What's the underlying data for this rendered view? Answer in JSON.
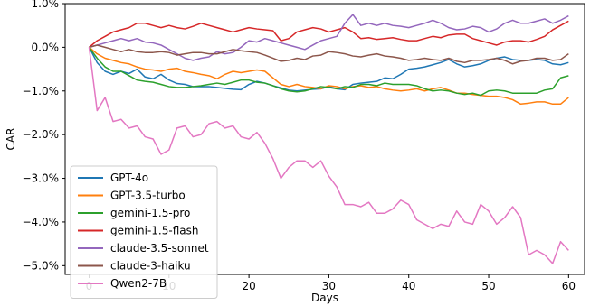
{
  "chart_data": {
    "type": "line",
    "xlabel": "Days",
    "ylabel": "CAR",
    "xlim": [
      -3,
      62
    ],
    "ylim": [
      -5.2,
      1.0
    ],
    "xticks": [
      0,
      10,
      20,
      30,
      40,
      50,
      60
    ],
    "xtick_labels": [
      "0",
      "10",
      "20",
      "30",
      "40",
      "50",
      "60"
    ],
    "yticks": [
      1.0,
      0.0,
      -1.0,
      -2.0,
      -3.0,
      -4.0,
      -5.0
    ],
    "ytick_labels": [
      "1.0%",
      "0.0%",
      "−1.0%",
      "−2.0%",
      "−3.0%",
      "−4.0%",
      "−5.0%"
    ],
    "grid": false,
    "legend_position": "lower-left",
    "x": [
      0,
      1,
      2,
      3,
      4,
      5,
      6,
      7,
      8,
      9,
      10,
      11,
      12,
      13,
      14,
      15,
      16,
      17,
      18,
      19,
      20,
      21,
      22,
      23,
      24,
      25,
      26,
      27,
      28,
      29,
      30,
      31,
      32,
      33,
      34,
      35,
      36,
      37,
      38,
      39,
      40,
      41,
      42,
      43,
      44,
      45,
      46,
      47,
      48,
      49,
      50,
      51,
      52,
      53,
      54,
      55,
      56,
      57,
      58,
      59,
      60
    ],
    "series": [
      {
        "name": "GPT-4o",
        "color": "#1f77b4",
        "values": [
          0.0,
          -0.35,
          -0.55,
          -0.62,
          -0.55,
          -0.6,
          -0.5,
          -0.68,
          -0.72,
          -0.62,
          -0.75,
          -0.83,
          -0.85,
          -0.9,
          -0.9,
          -0.9,
          -0.92,
          -0.94,
          -0.96,
          -0.97,
          -0.85,
          -0.78,
          -0.82,
          -0.88,
          -0.93,
          -0.98,
          -1.0,
          -0.98,
          -0.96,
          -0.95,
          -0.9,
          -0.95,
          -0.97,
          -0.85,
          -0.82,
          -0.8,
          -0.78,
          -0.7,
          -0.72,
          -0.62,
          -0.5,
          -0.48,
          -0.45,
          -0.4,
          -0.35,
          -0.28,
          -0.38,
          -0.45,
          -0.42,
          -0.38,
          -0.3,
          -0.25,
          -0.22,
          -0.28,
          -0.3,
          -0.3,
          -0.28,
          -0.3,
          -0.38,
          -0.4,
          -0.35
        ]
      },
      {
        "name": "GPT-3.5-turbo",
        "color": "#ff7f0e",
        "values": [
          0.0,
          -0.15,
          -0.25,
          -0.3,
          -0.35,
          -0.38,
          -0.45,
          -0.5,
          -0.52,
          -0.55,
          -0.5,
          -0.48,
          -0.55,
          -0.58,
          -0.62,
          -0.65,
          -0.72,
          -0.62,
          -0.55,
          -0.58,
          -0.55,
          -0.52,
          -0.55,
          -0.7,
          -0.85,
          -0.9,
          -0.85,
          -0.9,
          -0.92,
          -0.95,
          -0.88,
          -0.9,
          -0.95,
          -0.9,
          -0.88,
          -0.92,
          -0.9,
          -0.95,
          -0.98,
          -1.0,
          -0.98,
          -0.95,
          -1.0,
          -0.95,
          -0.92,
          -0.98,
          -1.05,
          -1.05,
          -1.08,
          -1.1,
          -1.12,
          -1.12,
          -1.15,
          -1.2,
          -1.3,
          -1.28,
          -1.25,
          -1.25,
          -1.3,
          -1.3,
          -1.15
        ]
      },
      {
        "name": "gemini-1.5-pro",
        "color": "#2ca02c",
        "values": [
          0.0,
          -0.25,
          -0.45,
          -0.55,
          -0.55,
          -0.65,
          -0.75,
          -0.78,
          -0.8,
          -0.85,
          -0.9,
          -0.92,
          -0.92,
          -0.9,
          -0.88,
          -0.85,
          -0.82,
          -0.85,
          -0.8,
          -0.75,
          -0.75,
          -0.8,
          -0.82,
          -0.88,
          -0.95,
          -1.0,
          -1.02,
          -1.0,
          -0.95,
          -0.9,
          -0.92,
          -0.95,
          -0.9,
          -0.92,
          -0.85,
          -0.85,
          -0.88,
          -0.82,
          -0.85,
          -0.85,
          -0.85,
          -0.88,
          -0.95,
          -1.0,
          -0.98,
          -1.0,
          -1.05,
          -1.08,
          -1.05,
          -1.1,
          -1.0,
          -0.98,
          -1.0,
          -1.05,
          -1.05,
          -1.05,
          -1.05,
          -0.98,
          -0.95,
          -0.7,
          -0.65
        ]
      },
      {
        "name": "gemini-1.5-flash",
        "color": "#d62728",
        "values": [
          0.0,
          0.15,
          0.25,
          0.35,
          0.4,
          0.45,
          0.55,
          0.55,
          0.5,
          0.45,
          0.5,
          0.45,
          0.42,
          0.48,
          0.55,
          0.5,
          0.45,
          0.4,
          0.35,
          0.4,
          0.45,
          0.42,
          0.4,
          0.38,
          0.15,
          0.2,
          0.35,
          0.4,
          0.45,
          0.42,
          0.35,
          0.4,
          0.45,
          0.35,
          0.2,
          0.22,
          0.18,
          0.2,
          0.22,
          0.18,
          0.15,
          0.15,
          0.2,
          0.25,
          0.22,
          0.28,
          0.3,
          0.3,
          0.2,
          0.15,
          0.1,
          0.05,
          0.12,
          0.15,
          0.15,
          0.12,
          0.18,
          0.25,
          0.4,
          0.5,
          0.6
        ]
      },
      {
        "name": "claude-3.5-sonnet",
        "color": "#9467bd",
        "values": [
          0.0,
          0.05,
          0.1,
          0.15,
          0.2,
          0.15,
          0.2,
          0.12,
          0.1,
          0.05,
          -0.05,
          -0.15,
          -0.25,
          -0.3,
          -0.25,
          -0.22,
          -0.1,
          -0.15,
          -0.12,
          0.0,
          0.15,
          0.12,
          0.2,
          0.15,
          0.1,
          0.05,
          0.0,
          -0.05,
          0.05,
          0.15,
          0.2,
          0.25,
          0.55,
          0.75,
          0.5,
          0.55,
          0.5,
          0.55,
          0.5,
          0.48,
          0.45,
          0.5,
          0.55,
          0.62,
          0.55,
          0.45,
          0.4,
          0.42,
          0.48,
          0.45,
          0.35,
          0.42,
          0.55,
          0.62,
          0.55,
          0.55,
          0.6,
          0.65,
          0.55,
          0.62,
          0.72
        ]
      },
      {
        "name": "claude-3-haiku",
        "color": "#8c564b",
        "values": [
          0.0,
          0.05,
          0.0,
          -0.05,
          -0.1,
          -0.05,
          -0.1,
          -0.12,
          -0.12,
          -0.1,
          -0.12,
          -0.18,
          -0.15,
          -0.12,
          -0.12,
          -0.15,
          -0.15,
          -0.1,
          -0.05,
          -0.08,
          -0.1,
          -0.12,
          -0.18,
          -0.25,
          -0.32,
          -0.3,
          -0.25,
          -0.28,
          -0.2,
          -0.18,
          -0.1,
          -0.12,
          -0.15,
          -0.2,
          -0.22,
          -0.18,
          -0.15,
          -0.2,
          -0.22,
          -0.25,
          -0.3,
          -0.28,
          -0.25,
          -0.28,
          -0.3,
          -0.25,
          -0.32,
          -0.35,
          -0.3,
          -0.3,
          -0.28,
          -0.25,
          -0.3,
          -0.38,
          -0.32,
          -0.3,
          -0.25,
          -0.25,
          -0.3,
          -0.28,
          -0.15
        ]
      },
      {
        "name": "Qwen2-7B",
        "color": "#e377c2",
        "values": [
          0.0,
          -1.45,
          -1.15,
          -1.7,
          -1.65,
          -1.85,
          -1.8,
          -2.05,
          -2.1,
          -2.45,
          -2.35,
          -1.85,
          -1.8,
          -2.05,
          -2.0,
          -1.75,
          -1.7,
          -1.85,
          -1.8,
          -2.05,
          -2.1,
          -1.95,
          -2.2,
          -2.55,
          -3.0,
          -2.75,
          -2.6,
          -2.6,
          -2.75,
          -2.6,
          -2.95,
          -3.2,
          -3.6,
          -3.6,
          -3.65,
          -3.55,
          -3.8,
          -3.8,
          -3.7,
          -3.5,
          -3.6,
          -3.95,
          -4.05,
          -4.15,
          -4.05,
          -4.1,
          -3.75,
          -4.0,
          -4.05,
          -3.6,
          -3.75,
          -4.05,
          -3.9,
          -3.65,
          -3.9,
          -4.75,
          -4.65,
          -4.75,
          -4.95,
          -4.45,
          -4.65
        ]
      }
    ]
  }
}
